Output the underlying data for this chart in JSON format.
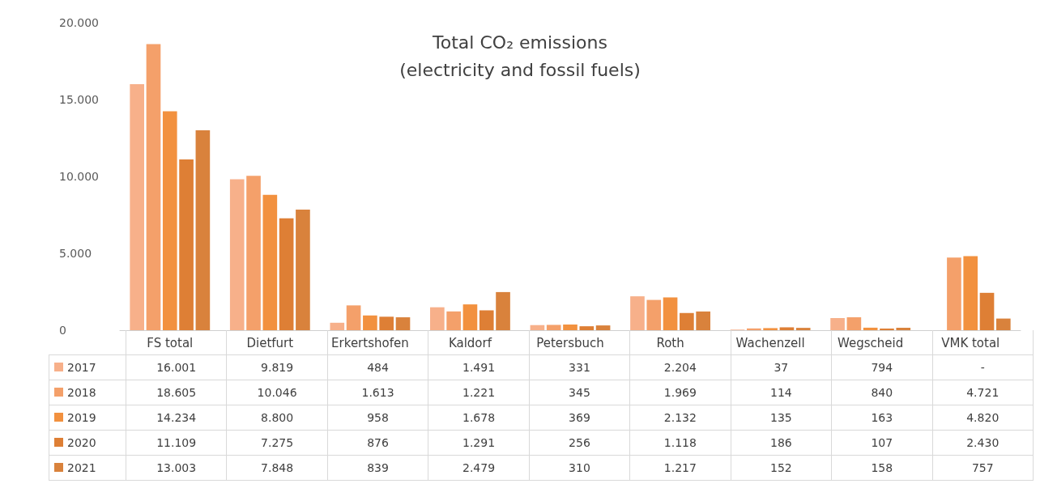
{
  "chart_data": {
    "type": "bar",
    "title": "Total CO₂ emissions\n(electricity and fossil fuels)",
    "categories": [
      "FS total",
      "Dietfurt",
      "Erkertshofen",
      "Kaldorf",
      "Petersbuch",
      "Roth",
      "Wachenzell",
      "Wegscheid",
      "VMK total"
    ],
    "series": [
      {
        "name": "2017",
        "color": "#f7b08a",
        "values": [
          16001,
          9819,
          484,
          1491,
          331,
          2204,
          37,
          794,
          null
        ],
        "value_labels": [
          "16.001",
          "9.819",
          "484",
          "1.491",
          "331",
          "2.204",
          "37",
          "794",
          "-"
        ]
      },
      {
        "name": "2018",
        "color": "#f4a06a",
        "values": [
          18605,
          10046,
          1613,
          1221,
          345,
          1969,
          114,
          840,
          4721
        ],
        "value_labels": [
          "18.605",
          "10.046",
          "1.613",
          "1.221",
          "345",
          "1.969",
          "114",
          "840",
          "4.721"
        ]
      },
      {
        "name": "2019",
        "color": "#f2913f",
        "values": [
          14234,
          8800,
          958,
          1678,
          369,
          2132,
          135,
          163,
          4820
        ],
        "value_labels": [
          "14.234",
          "8.800",
          "958",
          "1.678",
          "369",
          "2.132",
          "135",
          "163",
          "4.820"
        ]
      },
      {
        "name": "2020",
        "color": "#de7f35",
        "values": [
          11109,
          7275,
          876,
          1291,
          256,
          1118,
          186,
          107,
          2430
        ],
        "value_labels": [
          "11.109",
          "7.275",
          "876",
          "1.291",
          "256",
          "1.118",
          "186",
          "107",
          "2.430"
        ]
      },
      {
        "name": "2021",
        "color": "#d9823c",
        "values": [
          13003,
          7848,
          839,
          2479,
          310,
          1217,
          152,
          158,
          757
        ],
        "value_labels": [
          "13.003",
          "7.848",
          "839",
          "2.479",
          "310",
          "1.217",
          "152",
          "158",
          "757"
        ]
      }
    ],
    "ylim": [
      0,
      20000
    ],
    "yticks": [
      {
        "value": 0,
        "label": "0"
      },
      {
        "value": 5000,
        "label": "5.000"
      },
      {
        "value": 10000,
        "label": "10.000"
      },
      {
        "value": 15000,
        "label": "15.000"
      },
      {
        "value": 20000,
        "label": "20.000"
      }
    ],
    "grid": false,
    "legend": "bottom left"
  }
}
